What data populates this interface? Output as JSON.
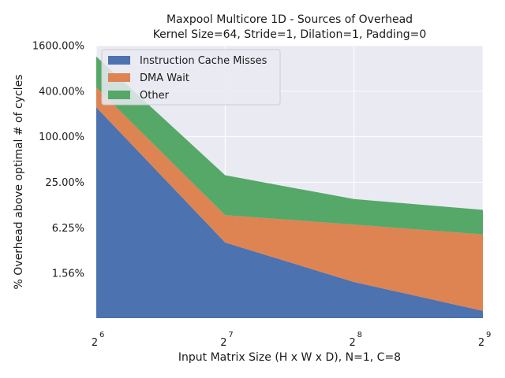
{
  "chart_data": {
    "type": "area",
    "stacked": true,
    "title": "Maxpool Multicore 1D - Sources of Overhead",
    "subtitle": "Kernel Size=64, Stride=1, Dilation=1, Padding=0",
    "xlabel": "Input Matrix Size (H x W x D), N=1, C=8",
    "ylabel": "% Overhead above optimal # of cycles",
    "x_scale": "log2",
    "y_scale": "log2",
    "x": [
      64,
      128,
      256,
      512
    ],
    "x_tick_labels": [
      {
        "base": "2",
        "exp": "6"
      },
      {
        "base": "2",
        "exp": "7"
      },
      {
        "base": "2",
        "exp": "8"
      },
      {
        "base": "2",
        "exp": "9"
      }
    ],
    "y_ticks": [
      1.5625,
      6.25,
      25,
      100,
      400,
      1600
    ],
    "y_tick_labels": [
      "1.56%",
      "6.25%",
      "25.00%",
      "100.00%",
      "400.00%",
      "1600.00%"
    ],
    "ylim": [
      0.4,
      1600
    ],
    "grid": true,
    "background": "#eaeaf2",
    "legend_position": "top-left",
    "series": [
      {
        "name": "Instruction Cache Misses",
        "color": "#4c72b0",
        "values": [
          245,
          4.0,
          1.2,
          0.5
        ]
      },
      {
        "name": "DMA Wait",
        "color": "#dd8452",
        "values": [
          205,
          5.2,
          5.7,
          4.6
        ]
      },
      {
        "name": "Other",
        "color": "#55a868",
        "values": [
          700,
          21.8,
          8.1,
          5.7
        ]
      }
    ]
  }
}
